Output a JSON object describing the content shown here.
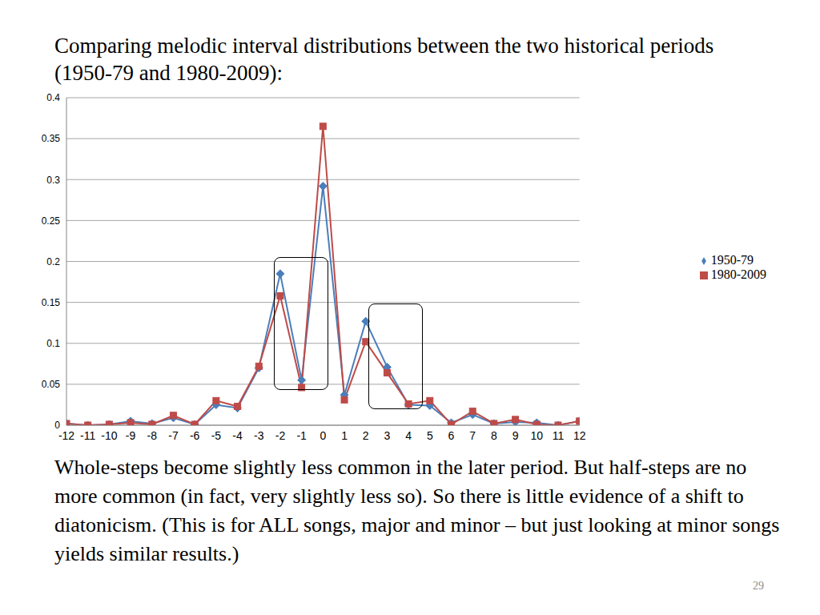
{
  "chart_data": {
    "type": "line",
    "title": "Comparing melodic interval distributions between the two historical periods (1950-79 and 1980-2009):",
    "annotations": [
      "Whole-steps become slightly less common in the later period. But half-steps are no more common (in fact, very slightly less so). So there is little evidence of a shift to diatonicism. (This is for ALL songs, major and minor – but just looking at minor songs yields similar results.)",
      "29"
    ],
    "x": [
      -12,
      -11,
      -10,
      -9,
      -8,
      -7,
      -6,
      -5,
      -4,
      -3,
      -2,
      -1,
      0,
      1,
      2,
      3,
      4,
      5,
      6,
      7,
      8,
      9,
      10,
      11,
      12
    ],
    "series": [
      {
        "name": "1950-79",
        "color": "#4a7ebb",
        "marker": "diamond",
        "values": [
          0.002,
          0,
          0.001,
          0.005,
          0.002,
          0.009,
          0.001,
          0.025,
          0.021,
          0.07,
          0.185,
          0.055,
          0.292,
          0.037,
          0.127,
          0.071,
          0.025,
          0.024,
          0.003,
          0.013,
          0.002,
          0.004,
          0.003,
          0,
          0.005
        ]
      },
      {
        "name": "1980-2009",
        "color": "#be4b48",
        "marker": "square",
        "values": [
          0.002,
          0,
          0.001,
          0.003,
          0.001,
          0.012,
          0.001,
          0.03,
          0.023,
          0.072,
          0.158,
          0.046,
          0.365,
          0.031,
          0.102,
          0.064,
          0.026,
          0.03,
          0.001,
          0.017,
          0.002,
          0.007,
          0.001,
          0,
          0.005
        ]
      }
    ],
    "xlim": [
      -12,
      12
    ],
    "xticks": [
      -12,
      -11,
      -10,
      -9,
      -8,
      -7,
      -6,
      -5,
      -4,
      -3,
      -2,
      -1,
      0,
      1,
      2,
      3,
      4,
      5,
      6,
      7,
      8,
      9,
      10,
      11,
      12
    ],
    "ylim": [
      0,
      0.4
    ],
    "yticks": [
      0,
      0.05,
      0.1,
      0.15,
      0.2,
      0.25,
      0.3,
      0.35,
      0.4
    ],
    "grid": true,
    "legend": "right"
  }
}
